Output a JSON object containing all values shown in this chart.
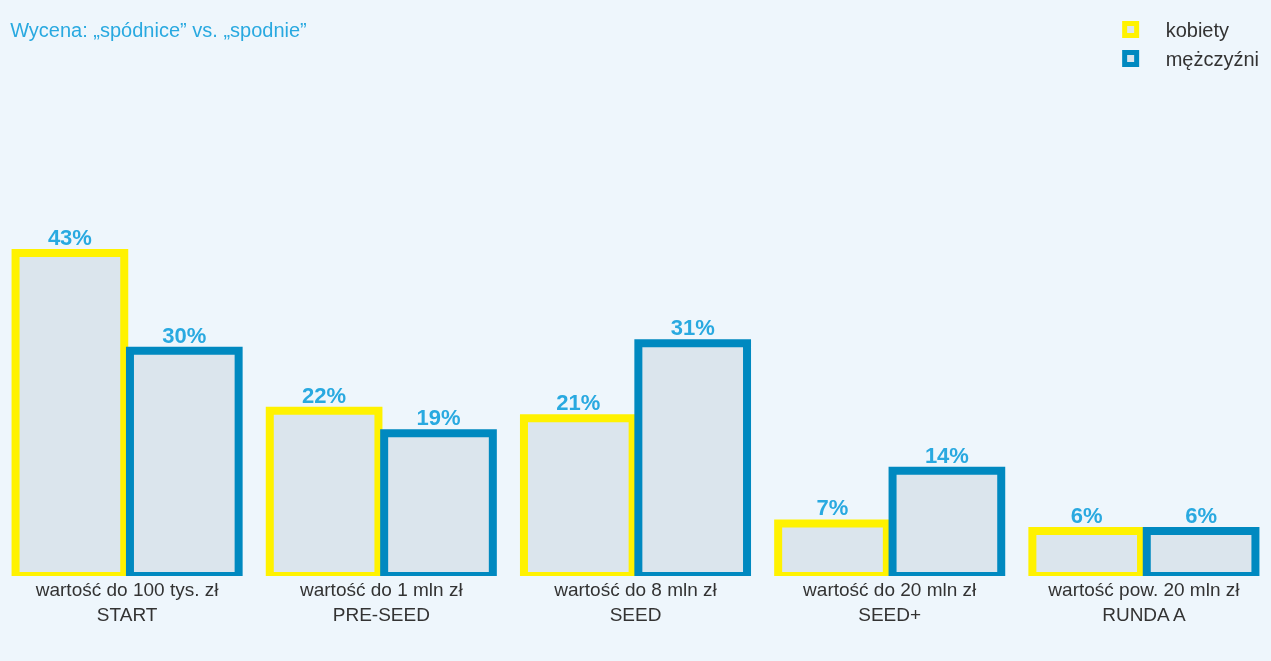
{
  "chart_data": {
    "type": "bar",
    "title": "Wycena: „spódnice” vs. „spodnie”",
    "categories": [
      "wartość do 100 tys. zł\nSTART",
      "wartość do 1 mln zł\nPRE-SEED",
      "wartość do 8 mln zł\nSEED",
      "wartość do 20 mln zł\nSEED+",
      "wartość pow. 20 mln zł\nRUNDA A"
    ],
    "series": [
      {
        "name": "kobiety",
        "color": "#fff200",
        "values": [
          43,
          22,
          21,
          7,
          6
        ],
        "value_labels": [
          "43%",
          "22%",
          "21%",
          "7%",
          "6%"
        ]
      },
      {
        "name": "mężczyźni",
        "color": "#0089c0",
        "values": [
          30,
          19,
          31,
          14,
          6
        ],
        "value_labels": [
          "30%",
          "19%",
          "31%",
          "14%",
          "6%"
        ]
      }
    ],
    "tick_labels": "x",
    "legend": "top right"
  }
}
